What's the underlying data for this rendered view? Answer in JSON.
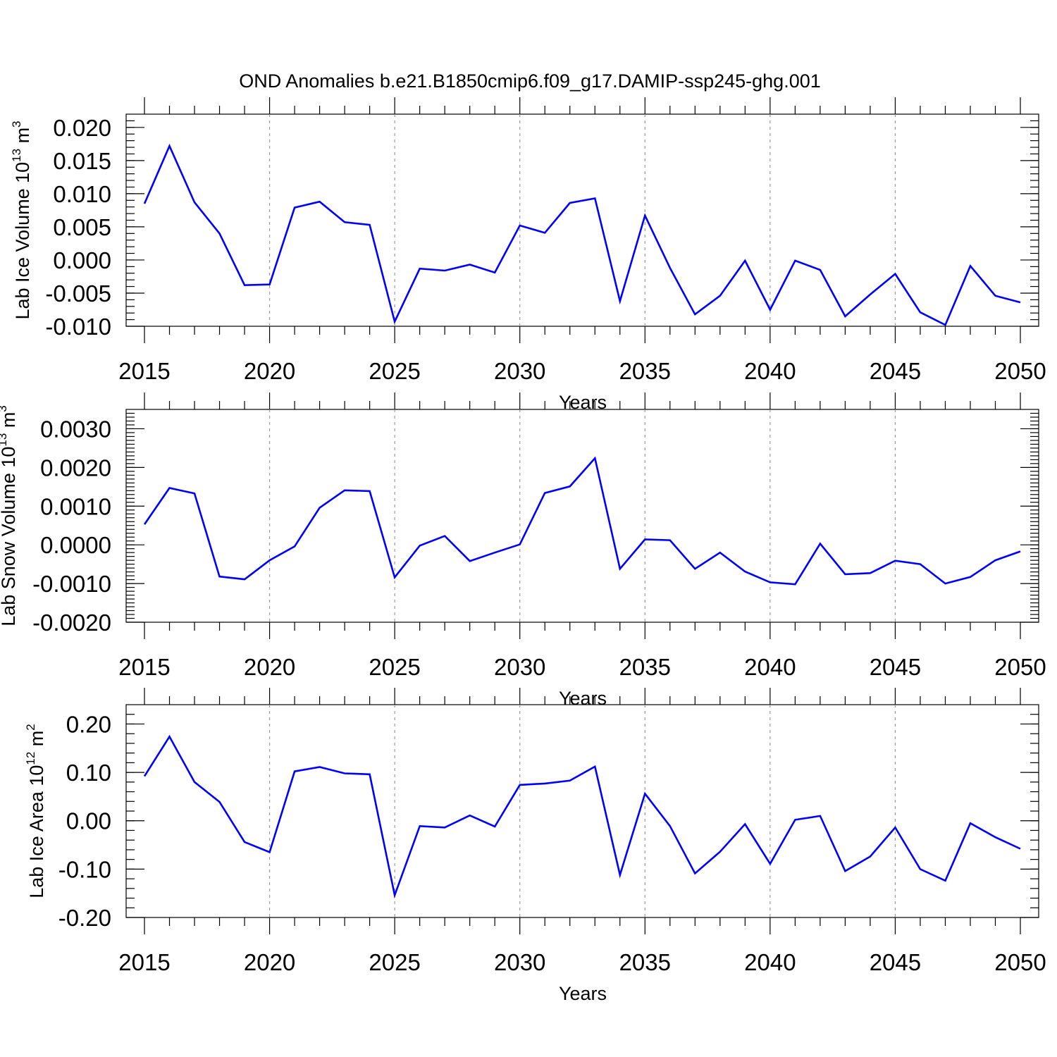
{
  "figure": {
    "title": "OND Anomalies b.e21.B1850cmip6.f09_g17.DAMIP-ssp245-ghg.001"
  },
  "chart_data": [
    {
      "type": "line",
      "ylabel": "Lab Ice Volume 10",
      "ylabel_exp": "13",
      "ylabel_unit": " m",
      "ylabel_unit_exp": "3",
      "xlabel": "Years",
      "xlim": [
        2015,
        2050
      ],
      "ylim": [
        -0.01,
        0.022
      ],
      "xticks": [
        "2015",
        "2020",
        "2025",
        "2030",
        "2035",
        "2040",
        "2045",
        "2050"
      ],
      "yticks": [
        "0.020",
        "0.015",
        "0.010",
        "0.005",
        "0.000",
        "-0.005",
        "-0.010"
      ],
      "ytick_values": [
        0.02,
        0.015,
        0.01,
        0.005,
        0.0,
        -0.005,
        -0.01
      ],
      "grid": "dashed vertical at labeled years",
      "line_color": "#0000ff",
      "x": [
        2015,
        2016,
        2017,
        2018,
        2019,
        2020,
        2021,
        2022,
        2023,
        2024,
        2025,
        2026,
        2027,
        2028,
        2029,
        2030,
        2031,
        2032,
        2033,
        2034,
        2035,
        2036,
        2037,
        2038,
        2039,
        2040,
        2041,
        2042,
        2043,
        2044,
        2045,
        2046,
        2047,
        2048,
        2049,
        2050
      ],
      "values": [
        0.0085,
        0.0172,
        0.0087,
        0.004,
        -0.0038,
        -0.0037,
        0.0079,
        0.0088,
        0.0057,
        0.0053,
        -0.0093,
        -0.0013,
        -0.0016,
        -0.0007,
        -0.0019,
        0.0052,
        0.0041,
        0.0086,
        0.0093,
        -0.0062,
        0.0067,
        -0.0012,
        -0.0082,
        -0.0054,
        -0.0001,
        -0.0075,
        -0.0001,
        -0.0015,
        -0.0085,
        -0.0052,
        -0.0021,
        -0.0079,
        -0.0098,
        -0.0009,
        -0.0054,
        -0.0064
      ]
    },
    {
      "type": "line",
      "ylabel": "Lab Snow Volume 10",
      "ylabel_exp": "13",
      "ylabel_unit": " m",
      "ylabel_unit_exp": "3",
      "xlabel": "Years",
      "xlim": [
        2015,
        2050
      ],
      "ylim": [
        -0.002,
        0.0035
      ],
      "xticks": [
        "2015",
        "2020",
        "2025",
        "2030",
        "2035",
        "2040",
        "2045",
        "2050"
      ],
      "yticks": [
        "0.0030",
        "0.0020",
        "0.0010",
        "0.0000",
        "-0.0010",
        "-0.0020"
      ],
      "ytick_values": [
        0.003,
        0.002,
        0.001,
        0.0,
        -0.001,
        -0.002
      ],
      "grid": "dashed vertical at labeled years",
      "line_color": "#0000ff",
      "x": [
        2015,
        2016,
        2017,
        2018,
        2019,
        2020,
        2021,
        2022,
        2023,
        2024,
        2025,
        2026,
        2027,
        2028,
        2029,
        2030,
        2031,
        2032,
        2033,
        2034,
        2035,
        2036,
        2037,
        2038,
        2039,
        2040,
        2041,
        2042,
        2043,
        2044,
        2045,
        2046,
        2047,
        2048,
        2049,
        2050
      ],
      "values": [
        0.00053,
        0.00147,
        0.00133,
        -0.00082,
        -0.00089,
        -0.0004,
        -4e-05,
        0.00096,
        0.00141,
        0.00139,
        -0.00084,
        -2e-05,
        0.00023,
        -0.00042,
        -0.0002,
        1e-05,
        0.00134,
        0.00151,
        0.00224,
        -0.00062,
        0.00014,
        0.00012,
        -0.00062,
        -0.0002,
        -0.00069,
        -0.00097,
        -0.00102,
        3e-05,
        -0.00076,
        -0.00073,
        -0.00041,
        -0.0005,
        -0.001,
        -0.00083,
        -0.0004,
        -0.00017
      ]
    },
    {
      "type": "line",
      "ylabel": "Lab Ice Area 10",
      "ylabel_exp": "12",
      "ylabel_unit": " m",
      "ylabel_unit_exp": "2",
      "xlabel": "Years",
      "xlim": [
        2015,
        2050
      ],
      "ylim": [
        -0.2,
        0.24
      ],
      "xticks": [
        "2015",
        "2020",
        "2025",
        "2030",
        "2035",
        "2040",
        "2045",
        "2050"
      ],
      "yticks": [
        "0.20",
        "0.10",
        "0.00",
        "-0.10",
        "-0.20"
      ],
      "ytick_values": [
        0.2,
        0.1,
        0.0,
        -0.1,
        -0.2
      ],
      "grid": "dashed vertical at labeled years",
      "line_color": "#0000ff",
      "x": [
        2015,
        2016,
        2017,
        2018,
        2019,
        2020,
        2021,
        2022,
        2023,
        2024,
        2025,
        2026,
        2027,
        2028,
        2029,
        2030,
        2031,
        2032,
        2033,
        2034,
        2035,
        2036,
        2037,
        2038,
        2039,
        2040,
        2041,
        2042,
        2043,
        2044,
        2045,
        2046,
        2047,
        2048,
        2049,
        2050
      ],
      "values": [
        0.092,
        0.174,
        0.08,
        0.039,
        -0.044,
        -0.065,
        0.102,
        0.111,
        0.098,
        0.096,
        -0.154,
        -0.011,
        -0.014,
        0.011,
        -0.012,
        0.074,
        0.077,
        0.083,
        0.112,
        -0.112,
        0.056,
        -0.011,
        -0.109,
        -0.064,
        -0.007,
        -0.089,
        0.002,
        0.01,
        -0.104,
        -0.074,
        -0.014,
        -0.1,
        -0.124,
        -0.005,
        -0.034,
        -0.058
      ]
    }
  ]
}
